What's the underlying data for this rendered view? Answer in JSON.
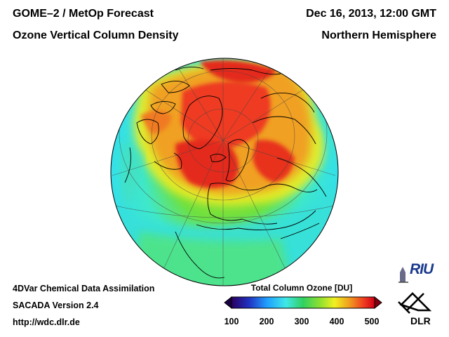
{
  "header": {
    "title_line1": "GOME–2 / MetOp Forecast",
    "title_line2": "Ozone Vertical Column Density",
    "date": "Dec 16, 2013, 12:00 GMT",
    "region": "Northern Hemisphere"
  },
  "footer": {
    "line1": "4DVar Chemical Data Assimilation",
    "line2": "SACADA Version 2.4",
    "line3": "http://wdc.dlr.de"
  },
  "colorbar": {
    "title": "Total Column Ozone [DU]",
    "ticks": [
      "100",
      "200",
      "300",
      "400",
      "500"
    ],
    "min": 100,
    "max": 500,
    "colors": [
      "#2a0060",
      "#2030c0",
      "#20a0ff",
      "#40e8e8",
      "#30d060",
      "#90e030",
      "#f0f020",
      "#f0a020",
      "#f04020",
      "#d00018"
    ]
  },
  "logos": {
    "riu": "RIU",
    "dlr": "DLR"
  },
  "map": {
    "projection": "orthographic",
    "center_latitude": 90,
    "field": "total column ozone",
    "units": "DU"
  }
}
